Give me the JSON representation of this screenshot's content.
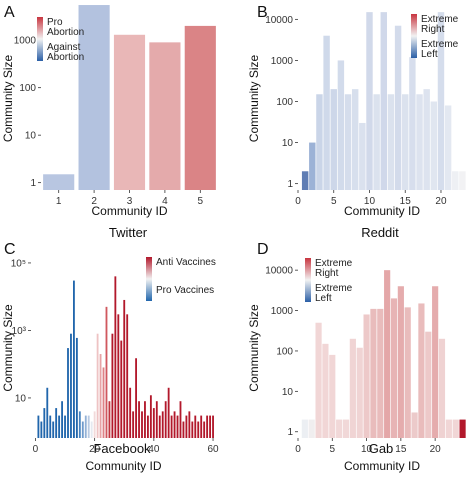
{
  "figure": {
    "panels": [
      {
        "letter": "A",
        "caption": "Twitter"
      },
      {
        "letter": "B",
        "caption": "Reddit"
      },
      {
        "letter": "C",
        "caption": "Facebook"
      },
      {
        "letter": "D",
        "caption": "Gab"
      }
    ]
  },
  "chart_data": [
    {
      "type": "bar",
      "panel": "A",
      "ylabel": "Community Size",
      "xlabel": "Community ID",
      "y_scale": "log",
      "ylim": [
        0.7,
        5000
      ],
      "y_ticks": [
        1,
        10,
        100,
        1000
      ],
      "y_tick_labels": [
        "1",
        "10",
        "100",
        "1000"
      ],
      "categories": [
        "1",
        "2",
        "3",
        "4",
        "5"
      ],
      "values": [
        1.5,
        5500,
        1300,
        900,
        2000
      ],
      "colors": [
        "#b8c6e1",
        "#b3c2df",
        "#e9b7b7",
        "#e4aaab",
        "#da8486"
      ],
      "legend": {
        "position": "top-left",
        "top_label": "Pro Abortion",
        "bottom_label": "Against Abortion",
        "top_color": "#c83540",
        "bottom_color": "#2b5fa6"
      }
    },
    {
      "type": "bar",
      "panel": "B",
      "ylabel": "Community Size",
      "xlabel": "Community ID",
      "y_scale": "log",
      "ylim": [
        0.7,
        20000
      ],
      "y_ticks": [
        1,
        10,
        100,
        1000,
        10000
      ],
      "y_tick_labels": [
        "1",
        "10",
        "100",
        "1000",
        "10000"
      ],
      "xlim": [
        0,
        23.5
      ],
      "x_ticks": [
        0,
        5,
        10,
        15,
        20
      ],
      "x": [
        1,
        2,
        3,
        4,
        5,
        6,
        7,
        8,
        9,
        10,
        11,
        12,
        13,
        14,
        15,
        16,
        17,
        18,
        19,
        20,
        21,
        22,
        23
      ],
      "values": [
        2,
        10,
        150,
        4000,
        200,
        1000,
        150,
        200,
        30,
        15000,
        150,
        15000,
        150,
        7000,
        150,
        1200,
        150,
        200,
        100,
        15000,
        80,
        2,
        2
      ],
      "colors": [
        "#5f7db4",
        "#9cb2d6",
        "#cad5e8",
        "#cfd9ea",
        "#cdd7e9",
        "#d2dbeb",
        "#d5ddec",
        "#d7dfed",
        "#dae1ee",
        "#d1d9ea",
        "#dbe2ee",
        "#d0d8ea",
        "#dbe2ee",
        "#d3dbeb",
        "#dbe2ee",
        "#d7deed",
        "#dde3ef",
        "#dde3ef",
        "#e0e6f0",
        "#d5ddec",
        "#e3e8f1",
        "#eef0f4",
        "#f2f2f4"
      ],
      "legend": {
        "position": "top-right",
        "top_label": "Extreme Right",
        "bottom_label": "Extreme Left",
        "top_color": "#c83540",
        "bottom_color": "#2b5fa6"
      }
    },
    {
      "type": "bar",
      "panel": "C",
      "ylabel": "Community Size",
      "xlabel": "Community ID",
      "y_scale": "log",
      "ylim": [
        0.65,
        140000
      ],
      "y_ticks": [
        10,
        1000,
        100000
      ],
      "y_tick_labels": [
        "10",
        "10³",
        "10⁵"
      ],
      "xlim": [
        -1.5,
        61
      ],
      "x_ticks": [
        0,
        20,
        40,
        60
      ],
      "x": [
        1,
        2,
        3,
        4,
        5,
        6,
        7,
        8,
        9,
        10,
        11,
        12,
        13,
        14,
        15,
        16,
        17,
        18,
        19,
        20,
        21,
        22,
        23,
        24,
        25,
        26,
        27,
        28,
        29,
        30,
        31,
        32,
        33,
        34,
        35,
        36,
        37,
        38,
        39,
        40,
        41,
        42,
        43,
        44,
        45,
        46,
        47,
        48,
        49,
        50,
        51,
        52,
        53,
        54,
        55,
        56,
        57,
        58,
        59,
        60
      ],
      "values": [
        3,
        2,
        5,
        20,
        3,
        2,
        5,
        3,
        8,
        3,
        300,
        800,
        30000,
        600,
        4,
        2,
        3,
        3,
        2,
        4,
        800,
        200,
        80,
        5000,
        8,
        800,
        40000,
        3000,
        500,
        8000,
        3000,
        20,
        4,
        150,
        8,
        4,
        8,
        3,
        12,
        5,
        8,
        3,
        4,
        8,
        20,
        3,
        4,
        3,
        8,
        2,
        3,
        4,
        2,
        3,
        2,
        3,
        2,
        3,
        3,
        3
      ],
      "colors": [
        "#2166ac",
        "#2166ac",
        "#2166ac",
        "#2166ac",
        "#2166ac",
        "#2166ac",
        "#2166ac",
        "#2166ac",
        "#2166ac",
        "#2166ac",
        "#2166ac",
        "#2166ac",
        "#2166ac",
        "#2166ac",
        "#4a84be",
        "#6f9acb",
        "#92b1d6",
        "#b9cae2",
        "#e5e9f0",
        "#f2dada",
        "#eec3c4",
        "#e7a3a5",
        "#de8286",
        "#d0585f",
        "#c0353e",
        "#b2182b",
        "#b2182b",
        "#b2182b",
        "#b2182b",
        "#b2182b",
        "#b2182b",
        "#b2182b",
        "#b2182b",
        "#b2182b",
        "#b2182b",
        "#b2182b",
        "#b2182b",
        "#b2182b",
        "#b2182b",
        "#b2182b",
        "#b2182b",
        "#b2182b",
        "#b2182b",
        "#b2182b",
        "#b2182b",
        "#b2182b",
        "#b2182b",
        "#b2182b",
        "#b2182b",
        "#b2182b",
        "#b2182b",
        "#b2182b",
        "#b2182b",
        "#b2182b",
        "#b2182b",
        "#b2182b",
        "#b2182b",
        "#b2182b",
        "#b2182b",
        "#b2182b"
      ],
      "legend": {
        "position": "top-right",
        "top_label": "Anti Vaccines",
        "bottom_label": "Pro Vaccines",
        "top_color": "#b2182b",
        "bottom_color": "#2166ac"
      }
    },
    {
      "type": "bar",
      "panel": "D",
      "ylabel": "Community Size",
      "xlabel": "Community ID",
      "y_scale": "log",
      "ylim": [
        0.7,
        20000
      ],
      "y_ticks": [
        1,
        10,
        100,
        1000,
        10000
      ],
      "y_tick_labels": [
        "1",
        "10",
        "100",
        "1000",
        "10000"
      ],
      "xlim": [
        0,
        24.5
      ],
      "x_ticks": [
        0,
        5,
        10,
        15,
        20
      ],
      "x": [
        1,
        2,
        3,
        4,
        5,
        6,
        7,
        8,
        9,
        10,
        11,
        12,
        13,
        14,
        15,
        16,
        17,
        18,
        19,
        20,
        21,
        22,
        23,
        24
      ],
      "values": [
        2,
        2,
        500,
        150,
        80,
        2,
        2,
        200,
        120,
        800,
        1100,
        1100,
        10000,
        2000,
        4000,
        1200,
        3,
        1500,
        300,
        4000,
        200,
        2,
        2,
        2
      ],
      "colors": [
        "#eceff3",
        "#f0eeef",
        "#f1d6d6",
        "#f1d6d6",
        "#f1d6d6",
        "#f1d8d8",
        "#f1d8d8",
        "#f0d4d4",
        "#f0d4d4",
        "#edc9c9",
        "#e9bcbc",
        "#e9bcbc",
        "#e4a7a8",
        "#e7b4b5",
        "#e5acad",
        "#e9bcbc",
        "#eccaca",
        "#e9bcbc",
        "#edc9c9",
        "#e5acad",
        "#efd2d2",
        "#f1d6d6",
        "#f1d6d6",
        "#b2182b"
      ],
      "legend": {
        "position": "top-left",
        "top_label": "Extreme Right",
        "bottom_label": "Extreme Left",
        "top_color": "#c83540",
        "bottom_color": "#2b5fa6"
      }
    }
  ]
}
